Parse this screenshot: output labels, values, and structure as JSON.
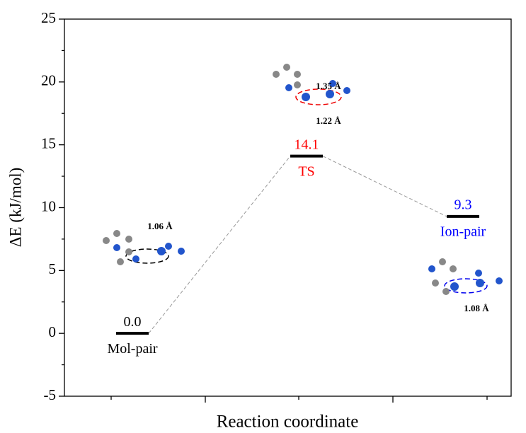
{
  "chart_data": {
    "type": "level",
    "x_label": "Reaction coordinate",
    "y_label": "ΔE (kJ/mol)",
    "categories": [
      "Mol-pair",
      "TS",
      "Ion-pair"
    ],
    "values": [
      0.0,
      14.1,
      9.3
    ],
    "value_labels": [
      "0.0",
      "14.1",
      "9.3"
    ],
    "colors": [
      "#000000",
      "#ff0000",
      "#0000ff"
    ],
    "ylim": [
      -5,
      25
    ],
    "yticks": [
      -5,
      0,
      5,
      10,
      15,
      20,
      25
    ],
    "annotations": [
      {
        "text": "1.06 Å"
      },
      {
        "text": "1.35 Å"
      },
      {
        "text": "1.22 Å"
      },
      {
        "text": "1.08 Å"
      }
    ]
  }
}
